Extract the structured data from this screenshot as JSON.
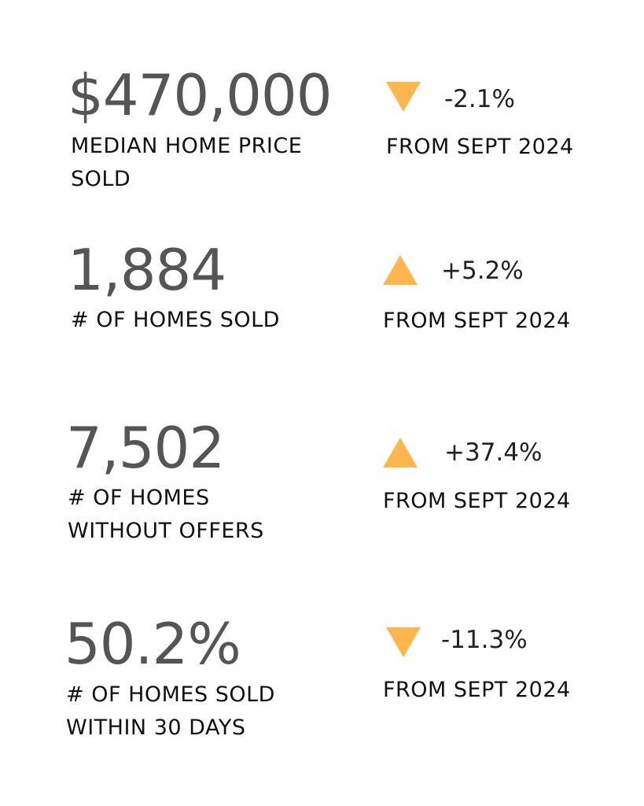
{
  "stats": [
    {
      "value": "$470,000",
      "label": "MEDIAN HOME PRICE\nSOLD",
      "direction": "down",
      "change": "-2.1%",
      "compare": "FROM SEPT 2024"
    },
    {
      "value": "1,884",
      "label": "# OF HOMES SOLD",
      "direction": "up",
      "change": "+5.2%",
      "compare": "FROM SEPT 2024"
    },
    {
      "value": "7,502",
      "label": "# OF HOMES\nWITHOUT OFFERS",
      "direction": "up",
      "change": "+37.4%",
      "compare": "FROM SEPT 2024"
    },
    {
      "value": "50.2%",
      "label": "# OF HOMES SOLD\nWITHIN 30 DAYS",
      "direction": "down",
      "change": "-11.3%",
      "compare": "FROM SEPT 2024"
    }
  ],
  "colors": {
    "arrow": "#ffb74d",
    "value_text": "#555555",
    "label_text": "#111111"
  }
}
